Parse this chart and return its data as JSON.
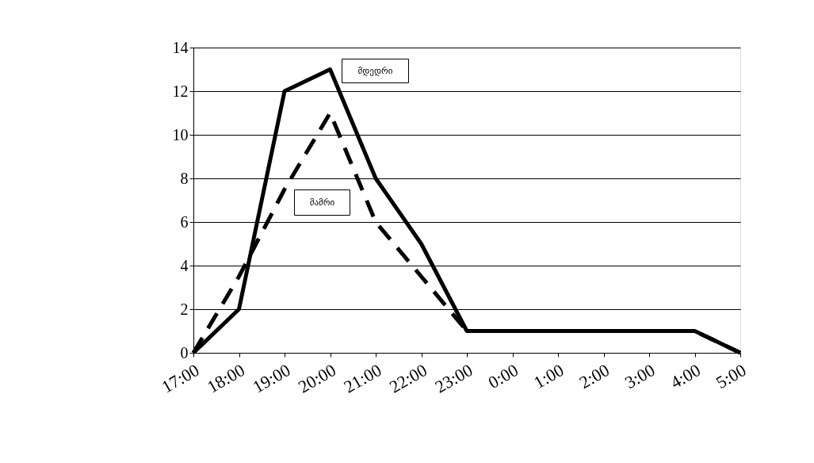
{
  "chart_data": {
    "type": "line",
    "categories": [
      "17:00",
      "18:00",
      "19:00",
      "20:00",
      "21:00",
      "22:00",
      "23:00",
      "0:00",
      "1:00",
      "2:00",
      "3:00",
      "4:00",
      "5:00"
    ],
    "series": [
      {
        "name": "მდედრი",
        "color": "#000000",
        "line_style": "solid",
        "values": [
          0,
          2,
          12,
          13,
          8,
          5,
          1,
          1,
          1,
          1,
          1,
          1,
          0
        ]
      },
      {
        "name": "მამრი",
        "color": "#000000",
        "line_style": "dashed",
        "values": [
          0,
          3.5,
          7.5,
          11,
          6,
          3.5,
          1,
          1,
          1,
          1,
          1,
          1,
          0
        ]
      }
    ],
    "ylim": [
      0,
      14
    ],
    "yticks": [
      0,
      2,
      4,
      6,
      8,
      10,
      12,
      14
    ],
    "grid": "y",
    "marker": "none"
  }
}
